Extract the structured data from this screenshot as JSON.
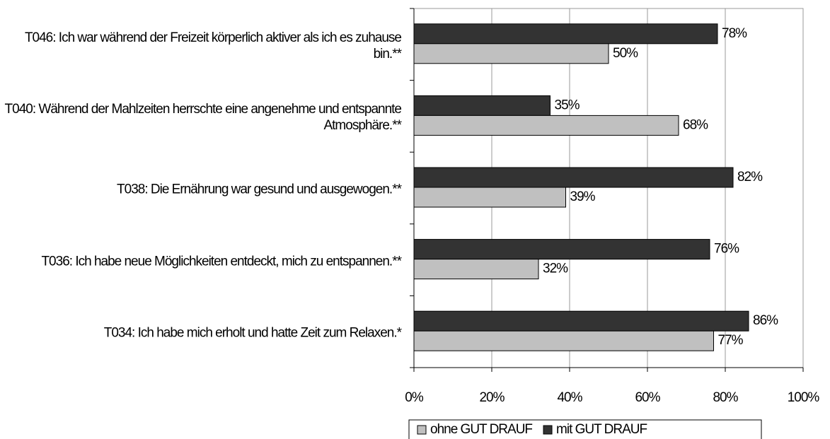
{
  "chart_data": {
    "type": "bar",
    "orientation": "horizontal",
    "categories": [
      "T046: Ich war während der Freizeit körperlich aktiver als ich es zuhause bin.**",
      "T040: Während der Mahlzeiten herrschte eine angenehme und entspannte Atmosphäre.**",
      "T038: Die Ernährung war gesund und ausgewogen.**",
      "T036: Ich habe neue Möglichkeiten entdeckt, mich zu entspannen.**",
      "T034: Ich habe mich erholt und hatte Zeit zum Relaxen.*"
    ],
    "series": [
      {
        "name": "ohne GUT DRAUF",
        "color": "#c0c0c0",
        "values": [
          50,
          68,
          39,
          32,
          77
        ],
        "value_labels": [
          "50%",
          "68%",
          "39%",
          "32%",
          "77%"
        ]
      },
      {
        "name": "mit GUT DRAUF",
        "color": "#333333",
        "values": [
          78,
          35,
          82,
          76,
          86
        ],
        "value_labels": [
          "78%",
          "35%",
          "82%",
          "76%",
          "86%"
        ]
      }
    ],
    "xlim": [
      0,
      100
    ],
    "xticks": [
      {
        "value": 0,
        "label": "0%"
      },
      {
        "value": 20,
        "label": "20%"
      },
      {
        "value": 40,
        "label": "40%"
      },
      {
        "value": 60,
        "label": "60%"
      },
      {
        "value": 80,
        "label": "80%"
      },
      {
        "value": 100,
        "label": "100%"
      }
    ],
    "grid": true,
    "legend": "bottom"
  }
}
